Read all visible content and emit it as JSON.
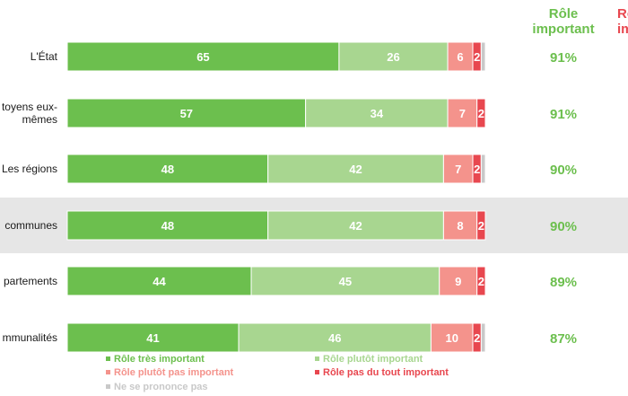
{
  "chart_data": {
    "type": "bar",
    "orientation": "horizontal",
    "stacked": true,
    "categories": [
      "L'État",
      "toyens eux-\nmêmes",
      "Les régions",
      "communes",
      "partements",
      "mmunalités"
    ],
    "series": [
      {
        "name": "Rôle très important",
        "color": "#6cbf4e",
        "values": [
          65,
          57,
          48,
          48,
          44,
          41
        ]
      },
      {
        "name": "Rôle plutôt important",
        "color": "#a8d690",
        "values": [
          26,
          34,
          42,
          42,
          45,
          46
        ]
      },
      {
        "name": "Rôle plutôt pas important",
        "color": "#f4938c",
        "values": [
          6,
          7,
          7,
          8,
          9,
          10
        ]
      },
      {
        "name": "Rôle pas du tout important",
        "color": "#e8474f",
        "values": [
          2,
          2,
          2,
          2,
          2,
          2
        ]
      },
      {
        "name": "Ne se prononce pas",
        "color": "#c9c9c9",
        "values": [
          1,
          0,
          1,
          0,
          0,
          1
        ]
      }
    ],
    "value_label_colors": [
      "#ffffff",
      "#ffffff",
      "#ffffff",
      "#ffffff",
      "#ffffff"
    ],
    "summary_column": {
      "title_line1": "Rôle",
      "title_line2": "important",
      "values": [
        "91%",
        "91%",
        "90%",
        "90%",
        "89%",
        "87%"
      ]
    },
    "partial_column": {
      "title_line1": "Rô",
      "title_line2": "im",
      "color": "#e8474f"
    },
    "highlighted_row": 3,
    "highlight_color": "#e6e6e6"
  }
}
